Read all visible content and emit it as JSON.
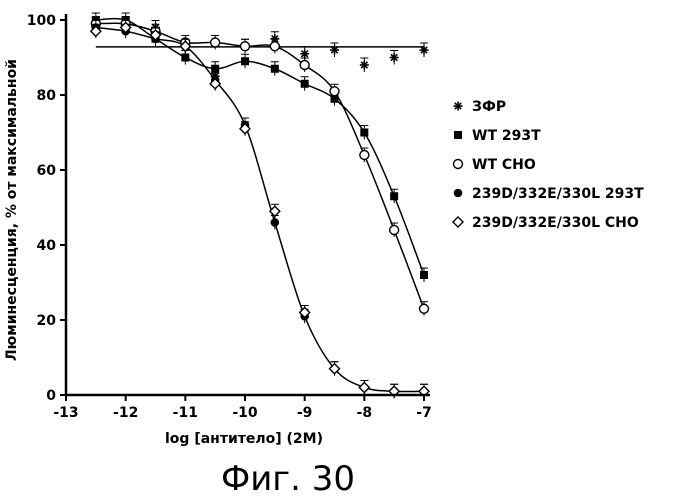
{
  "chart_data": {
    "type": "scatter",
    "title": "",
    "xlabel": "log [антитело] (2M)",
    "ylabel": "Люминесценция, % от максимальной",
    "xlim": [
      -13,
      -7
    ],
    "ylim": [
      0,
      100
    ],
    "x_ticks": [
      "-13",
      "-12",
      "-11",
      "-10",
      "-9",
      "-8",
      "-7"
    ],
    "y_ticks": [
      "0",
      "20",
      "40",
      "60",
      "80",
      "100"
    ],
    "legend_position": "right",
    "series": [
      {
        "name": "ЗФР",
        "marker": "asterisk",
        "fit": "line",
        "x": [
          -12.5,
          -12.0,
          -11.5,
          -11.0,
          -10.5,
          -10.0,
          -9.5,
          -9.0,
          -8.5,
          -8.0,
          -7.5,
          -7.0
        ],
        "y": [
          98,
          99,
          98,
          93,
          85,
          93,
          95,
          91,
          92,
          88,
          90,
          92
        ]
      },
      {
        "name": "WT 293T",
        "marker": "square",
        "fit": "curve",
        "x": [
          -12.5,
          -12.0,
          -11.5,
          -11.0,
          -10.5,
          -10.0,
          -9.5,
          -9.0,
          -8.5,
          -8.0,
          -7.5,
          -7.0
        ],
        "y": [
          100,
          100,
          95,
          90,
          87,
          89,
          87,
          83,
          79,
          70,
          53,
          32
        ]
      },
      {
        "name": "WT CHO",
        "marker": "circle-open",
        "fit": "curve",
        "x": [
          -12.5,
          -12.0,
          -11.5,
          -11.0,
          -10.5,
          -10.0,
          -9.5,
          -9.0,
          -8.5,
          -8.0,
          -7.5,
          -7.0
        ],
        "y": [
          99,
          99,
          97,
          94,
          94,
          93,
          93,
          88,
          81,
          64,
          44,
          23
        ]
      },
      {
        "name": "239D/332E/330L 293T",
        "marker": "circle-filled",
        "fit": "curve",
        "x": [
          -12.5,
          -12.0,
          -11.5,
          -11.0,
          -10.5,
          -10.0,
          -9.5,
          -9.0,
          -8.5,
          -8.0,
          -7.5,
          -7.0
        ],
        "y": [
          98,
          97,
          95,
          93,
          84,
          72,
          46,
          21,
          7,
          2,
          1,
          1
        ]
      },
      {
        "name": "239D/332E/330L CHO",
        "marker": "diamond-open",
        "fit": "none",
        "x": [
          -12.5,
          -12.0,
          -11.5,
          -11.0,
          -10.5,
          -10.0,
          -9.5,
          -9.0,
          -8.5,
          -8.0,
          -7.5,
          -7.0
        ],
        "y": [
          97,
          98,
          96,
          93,
          83,
          71,
          49,
          22,
          7,
          2,
          1,
          1
        ]
      }
    ]
  },
  "figure_caption": "Фиг. 30"
}
